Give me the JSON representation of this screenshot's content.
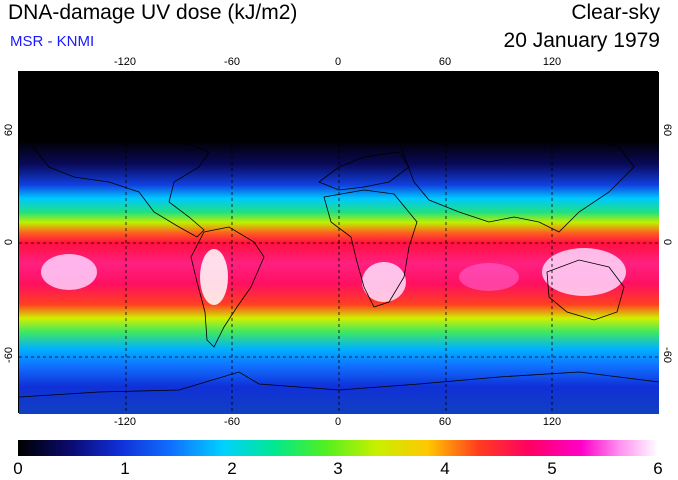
{
  "header": {
    "title": "DNA-damage UV dose (kJ/m2)",
    "source": "MSR - KNMI",
    "condition": "Clear-sky",
    "date": "20 January 1979"
  },
  "map": {
    "projection": "equirectangular",
    "lon_range": [
      -180,
      180
    ],
    "lat_range": [
      -90,
      90
    ],
    "lon_ticks": [
      -120,
      -60,
      0,
      60,
      120
    ],
    "lon_tick_labels": [
      "-120",
      "-60",
      "0",
      "60",
      "120"
    ],
    "lat_ticks": [
      60,
      0,
      -60
    ],
    "lat_tick_labels": [
      "60",
      "0",
      "-60"
    ]
  },
  "colorbar": {
    "min": 0,
    "max": 6,
    "tick_labels": [
      "0",
      "1",
      "2",
      "3",
      "4",
      "5",
      "6"
    ],
    "colors": [
      "#000000",
      "#0a0a6e",
      "#1030d8",
      "#1070ff",
      "#00d0ff",
      "#00e890",
      "#50f020",
      "#c8f000",
      "#ffc800",
      "#ff3c1e",
      "#ff0064",
      "#ff00c8",
      "#ff90f0",
      "#ffffff"
    ]
  }
}
